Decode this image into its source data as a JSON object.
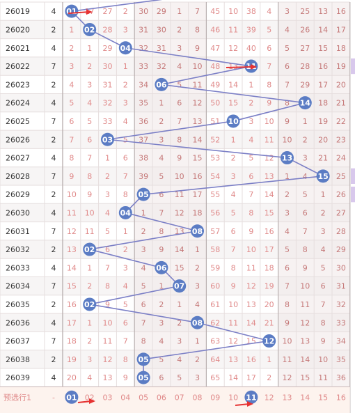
{
  "colors": {
    "ball": "#5b7cc4",
    "line": "#7b7fc6",
    "grid": "#e6dede",
    "zone_shade": "#f0e8e8",
    "arrow": "#e63232",
    "side_bar": "#d8c8ec"
  },
  "rows": [
    {
      "issue": "26019",
      "count": "4",
      "cells": [
        "01",
        "17",
        "27",
        "2",
        "30",
        "29",
        "1",
        "7",
        "45",
        "10",
        "38",
        "4",
        "3",
        "25",
        "13",
        "16"
      ],
      "ball": 1
    },
    {
      "issue": "26020",
      "count": "2",
      "cells": [
        "1",
        "02",
        "28",
        "3",
        "31",
        "30",
        "2",
        "8",
        "46",
        "11",
        "39",
        "5",
        "4",
        "26",
        "14",
        "17"
      ],
      "ball": 2
    },
    {
      "issue": "26021",
      "count": "4",
      "cells": [
        "2",
        "1",
        "29",
        "04",
        "32",
        "31",
        "3",
        "9",
        "47",
        "12",
        "40",
        "6",
        "5",
        "27",
        "15",
        "18"
      ],
      "ball": 4
    },
    {
      "issue": "26022",
      "count": "7",
      "cells": [
        "3",
        "2",
        "30",
        "1",
        "33",
        "32",
        "4",
        "10",
        "48",
        "13",
        "11",
        "7",
        "6",
        "28",
        "16",
        "19"
      ],
      "ball": 11
    },
    {
      "issue": "26023",
      "count": "2",
      "cells": [
        "4",
        "3",
        "31",
        "2",
        "34",
        "06",
        "5",
        "11",
        "49",
        "14",
        "1",
        "8",
        "7",
        "29",
        "17",
        "20"
      ],
      "ball": 6
    },
    {
      "issue": "26024",
      "count": "4",
      "cells": [
        "5",
        "4",
        "32",
        "3",
        "35",
        "1",
        "6",
        "12",
        "50",
        "15",
        "2",
        "9",
        "8",
        "14",
        "18",
        "21"
      ],
      "ball": 14
    },
    {
      "issue": "26025",
      "count": "7",
      "cells": [
        "6",
        "5",
        "33",
        "4",
        "36",
        "2",
        "7",
        "13",
        "51",
        "10",
        "3",
        "10",
        "9",
        "1",
        "19",
        "22"
      ],
      "ball": 10
    },
    {
      "issue": "26026",
      "count": "2",
      "cells": [
        "7",
        "6",
        "03",
        "5",
        "37",
        "3",
        "8",
        "14",
        "52",
        "1",
        "4",
        "11",
        "10",
        "2",
        "20",
        "23"
      ],
      "ball": 3
    },
    {
      "issue": "26027",
      "count": "4",
      "cells": [
        "8",
        "7",
        "1",
        "6",
        "38",
        "4",
        "9",
        "15",
        "53",
        "2",
        "5",
        "12",
        "13",
        "3",
        "21",
        "24"
      ],
      "ball": 13
    },
    {
      "issue": "26028",
      "count": "7",
      "cells": [
        "9",
        "8",
        "2",
        "7",
        "39",
        "5",
        "10",
        "16",
        "54",
        "3",
        "6",
        "13",
        "1",
        "4",
        "15",
        "25"
      ],
      "ball": 15
    },
    {
      "issue": "26029",
      "count": "2",
      "cells": [
        "10",
        "9",
        "3",
        "8",
        "05",
        "6",
        "11",
        "17",
        "55",
        "4",
        "7",
        "14",
        "2",
        "5",
        "1",
        "26"
      ],
      "ball": 5
    },
    {
      "issue": "26030",
      "count": "4",
      "cells": [
        "11",
        "10",
        "4",
        "04",
        "1",
        "7",
        "12",
        "18",
        "56",
        "5",
        "8",
        "15",
        "3",
        "6",
        "2",
        "27"
      ],
      "ball": 4
    },
    {
      "issue": "26031",
      "count": "7",
      "cells": [
        "12",
        "11",
        "5",
        "1",
        "2",
        "8",
        "13",
        "08",
        "57",
        "6",
        "9",
        "16",
        "4",
        "7",
        "3",
        "28"
      ],
      "ball": 8
    },
    {
      "issue": "26032",
      "count": "2",
      "cells": [
        "13",
        "02",
        "6",
        "2",
        "3",
        "9",
        "14",
        "1",
        "58",
        "7",
        "10",
        "17",
        "5",
        "8",
        "4",
        "29"
      ],
      "ball": 2
    },
    {
      "issue": "26033",
      "count": "4",
      "cells": [
        "14",
        "1",
        "7",
        "3",
        "4",
        "06",
        "15",
        "2",
        "59",
        "8",
        "11",
        "18",
        "6",
        "9",
        "5",
        "30"
      ],
      "ball": 6
    },
    {
      "issue": "26034",
      "count": "7",
      "cells": [
        "15",
        "2",
        "8",
        "4",
        "5",
        "1",
        "07",
        "3",
        "60",
        "9",
        "12",
        "19",
        "7",
        "10",
        "6",
        "31"
      ],
      "ball": 7
    },
    {
      "issue": "26035",
      "count": "2",
      "cells": [
        "16",
        "02",
        "9",
        "5",
        "6",
        "2",
        "1",
        "4",
        "61",
        "10",
        "13",
        "20",
        "8",
        "11",
        "7",
        "32"
      ],
      "ball": 2
    },
    {
      "issue": "26036",
      "count": "4",
      "cells": [
        "17",
        "1",
        "10",
        "6",
        "7",
        "3",
        "2",
        "08",
        "62",
        "11",
        "14",
        "21",
        "9",
        "12",
        "8",
        "33"
      ],
      "ball": 8
    },
    {
      "issue": "26037",
      "count": "7",
      "cells": [
        "18",
        "2",
        "11",
        "7",
        "8",
        "4",
        "3",
        "1",
        "63",
        "12",
        "15",
        "12",
        "10",
        "13",
        "9",
        "34"
      ],
      "ball": 12
    },
    {
      "issue": "26038",
      "count": "2",
      "cells": [
        "19",
        "3",
        "12",
        "8",
        "05",
        "5",
        "4",
        "2",
        "64",
        "13",
        "16",
        "1",
        "11",
        "14",
        "10",
        "35"
      ],
      "ball": 5
    },
    {
      "issue": "26039",
      "count": "4",
      "cells": [
        "20",
        "4",
        "13",
        "9",
        "05",
        "6",
        "5",
        "3",
        "65",
        "14",
        "17",
        "2",
        "12",
        "15",
        "11",
        "36"
      ],
      "ball": 5
    }
  ],
  "footer": {
    "label": "预选行1",
    "count": "-",
    "numbers": [
      "01",
      "02",
      "03",
      "04",
      "05",
      "06",
      "07",
      "08",
      "09",
      "10",
      "11",
      "12",
      "13",
      "14",
      "15",
      "16"
    ],
    "selected": [
      1,
      11
    ]
  }
}
